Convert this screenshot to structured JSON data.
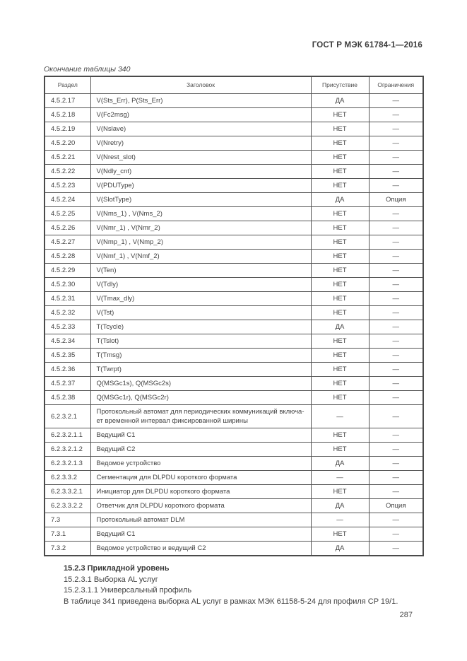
{
  "page": {
    "doc_header": "ГОСТ Р МЭК 61784-1—2016",
    "page_number": "287"
  },
  "table": {
    "caption": "Окончание таблицы 340",
    "columns": {
      "section": "Раздел",
      "heading": "Заголовок",
      "presence": "Присутствие",
      "restrictions": "Ограничения"
    },
    "rows": [
      {
        "section": "4.5.2.17",
        "heading": "V(Sts_Err), P(Sts_Err)",
        "presence": "ДА",
        "restrictions": "—"
      },
      {
        "section": "4.5.2.18",
        "heading": "V(Fc2msg)",
        "presence": "НЕТ",
        "restrictions": "—"
      },
      {
        "section": "4.5.2.19",
        "heading": "V(Nslave)",
        "presence": "НЕТ",
        "restrictions": "—"
      },
      {
        "section": "4.5.2.20",
        "heading": "V(Nretry)",
        "presence": "НЕТ",
        "restrictions": "—"
      },
      {
        "section": "4.5.2.21",
        "heading": "V(Nrest_slot)",
        "presence": "НЕТ",
        "restrictions": "—"
      },
      {
        "section": "4.5.2.22",
        "heading": "V(Ndly_cnt)",
        "presence": "НЕТ",
        "restrictions": "—"
      },
      {
        "section": "4.5.2.23",
        "heading": "V(PDUType)",
        "presence": "НЕТ",
        "restrictions": "—"
      },
      {
        "section": "4.5.2.24",
        "heading": "V(SlotType)",
        "presence": "ДА",
        "restrictions": "Опция"
      },
      {
        "section": "4.5.2.25",
        "heading": "V(Nms_1) , V(Nms_2)",
        "presence": "НЕТ",
        "restrictions": "—"
      },
      {
        "section": "4.5.2.26",
        "heading": "V(Nmr_1) , V(Nmr_2)",
        "presence": "НЕТ",
        "restrictions": "—"
      },
      {
        "section": "4.5.2.27",
        "heading": "V(Nmp_1) , V(Nmp_2)",
        "presence": "НЕТ",
        "restrictions": "—"
      },
      {
        "section": "4.5.2.28",
        "heading": "V(Nmf_1) , V(Nmf_2)",
        "presence": "НЕТ",
        "restrictions": "—"
      },
      {
        "section": "4.5.2.29",
        "heading": "V(Ten)",
        "presence": "НЕТ",
        "restrictions": "—"
      },
      {
        "section": "4.5.2.30",
        "heading": "V(Tdly)",
        "presence": "НЕТ",
        "restrictions": "—"
      },
      {
        "section": "4.5.2.31",
        "heading": "V(Tmax_dly)",
        "presence": "НЕТ",
        "restrictions": "—"
      },
      {
        "section": "4.5.2.32",
        "heading": "V(Tst)",
        "presence": "НЕТ",
        "restrictions": "—"
      },
      {
        "section": "4.5.2.33",
        "heading": "T(Tcycle)",
        "presence": "ДА",
        "restrictions": "—"
      },
      {
        "section": "4.5.2.34",
        "heading": "T(Tslot)",
        "presence": "НЕТ",
        "restrictions": "—"
      },
      {
        "section": "4.5.2.35",
        "heading": "T(Tmsg)",
        "presence": "НЕТ",
        "restrictions": "—"
      },
      {
        "section": "4.5.2.36",
        "heading": "T(Twrpt)",
        "presence": "НЕТ",
        "restrictions": "—"
      },
      {
        "section": "4.5.2.37",
        "heading": "Q(MSGc1s), Q(MSGc2s)",
        "presence": "НЕТ",
        "restrictions": "—"
      },
      {
        "section": "4.5.2.38",
        "heading": "Q(MSGc1r), Q(MSGc2r)",
        "presence": "НЕТ",
        "restrictions": "—"
      },
      {
        "section": "6.2.3.2.1",
        "heading": "Протокольный автомат для периодических коммуникаций включа-\nет временной интервал фиксированной ширины",
        "presence": "—",
        "restrictions": "—"
      },
      {
        "section": "6.2.3.2.1.1",
        "heading": "Ведущий C1",
        "presence": "НЕТ",
        "restrictions": "—"
      },
      {
        "section": "6.2.3.2.1.2",
        "heading": "Ведущий C2",
        "presence": "НЕТ",
        "restrictions": "—"
      },
      {
        "section": "6.2.3.2.1.3",
        "heading": "Ведомое устройство",
        "presence": "ДА",
        "restrictions": "—"
      },
      {
        "section": "6.2.3.3.2",
        "heading": "Сегментация для DLPDU короткого формата",
        "presence": "—",
        "restrictions": "—"
      },
      {
        "section": "6.2.3.3.2.1",
        "heading": "Инициатор для DLPDU короткого формата",
        "presence": "НЕТ",
        "restrictions": "—"
      },
      {
        "section": "6.2.3.3.2.2",
        "heading": "Ответчик для DLPDU короткого формата",
        "presence": "ДА",
        "restrictions": "Опция"
      },
      {
        "section": "7.3",
        "heading": "Протокольный автомат DLM",
        "presence": "—",
        "restrictions": "—"
      },
      {
        "section": "7.3.1",
        "heading": "Ведущий C1",
        "presence": "НЕТ",
        "restrictions": "—"
      },
      {
        "section": "7.3.2",
        "heading": "Ведомое устройство и ведущий C2",
        "presence": "ДА",
        "restrictions": "—"
      }
    ]
  },
  "body": {
    "heading": "15.2.3 Прикладной уровень",
    "line1": "15.2.3.1 Выборка AL услуг",
    "line2": "15.2.3.1.1 Универсальный профиль",
    "line3": "В таблице 341 приведена выборка AL услуг в рамках МЭК 61158-5-24 для профиля CP 19/1."
  }
}
